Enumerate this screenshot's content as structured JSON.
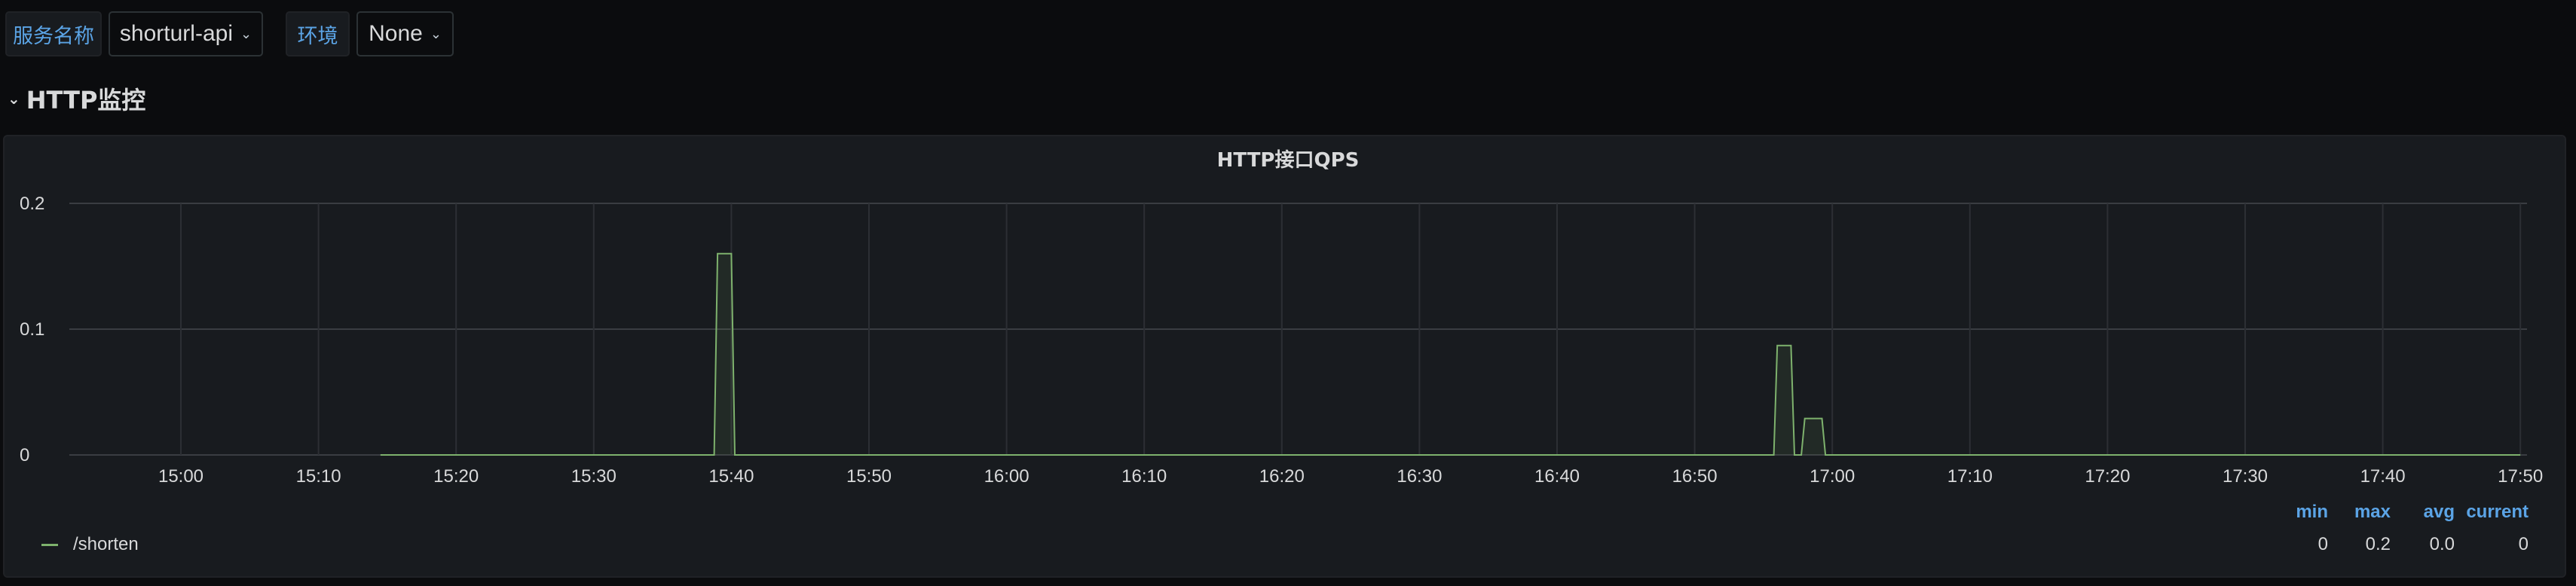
{
  "variables": [
    {
      "label": "服务名称",
      "value": "shorturl-api"
    },
    {
      "label": "环境",
      "value": "None"
    }
  ],
  "section": {
    "title": "HTTP监控",
    "icon": "chevron-down-icon"
  },
  "panel": {
    "title": "HTTP接口QPS"
  },
  "colors": {
    "series": "#7eb26d",
    "label": "#5ba4e6",
    "panel_bg": "#181b1f",
    "page_bg": "#0b0c0e"
  },
  "chart_data": {
    "type": "area",
    "title": "HTTP接口QPS",
    "xlabel": "",
    "ylabel": "",
    "x_ticks": [
      "15:00",
      "15:10",
      "15:20",
      "15:30",
      "15:40",
      "15:50",
      "16:00",
      "16:10",
      "16:20",
      "16:30",
      "16:40",
      "16:50",
      "17:00",
      "17:10",
      "17:20",
      "17:30",
      "17:40",
      "17:50"
    ],
    "y_ticks": [
      "0",
      "0.1",
      "0.2"
    ],
    "ylim": [
      0,
      0.2
    ],
    "grid": true,
    "legend": "bottom",
    "series": [
      {
        "name": "/shorten",
        "points": [
          [
            "15:14:30",
            0
          ],
          [
            "15:38:45",
            0
          ],
          [
            "15:39:00",
            0.16
          ],
          [
            "15:40:00",
            0.16
          ],
          [
            "15:40:15",
            0
          ],
          [
            "16:55:45",
            0
          ],
          [
            "16:56:00",
            0.087
          ],
          [
            "16:57:00",
            0.087
          ],
          [
            "16:57:15",
            0
          ],
          [
            "16:57:45",
            0
          ],
          [
            "16:58:00",
            0.029
          ],
          [
            "16:59:15",
            0.029
          ],
          [
            "16:59:30",
            0
          ],
          [
            "17:50:00",
            0
          ]
        ]
      }
    ]
  },
  "legend": {
    "headers": [
      "min",
      "max",
      "avg",
      "current"
    ],
    "rows": [
      {
        "name": "/shorten",
        "values": [
          "0",
          "0.2",
          "0.0",
          "0"
        ]
      }
    ]
  }
}
